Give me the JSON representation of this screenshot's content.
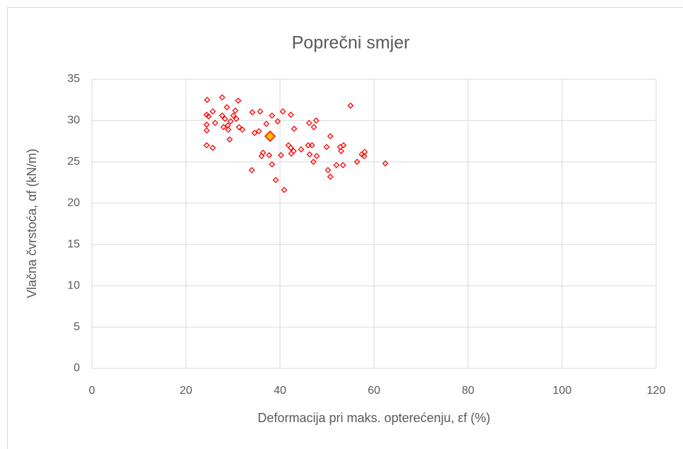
{
  "chart_data": {
    "type": "scatter",
    "title": "Poprečni smjer",
    "x_label": "Deformacija pri maks. opterećenju, εf (%)",
    "y_label": "Vlačna čvrstoća, αf (kN/m)",
    "xlim": [
      0,
      120
    ],
    "xticks": [
      0,
      20,
      40,
      60,
      80,
      100,
      120
    ],
    "ylim": [
      0,
      35
    ],
    "yticks": [
      0,
      5,
      10,
      15,
      20,
      25,
      30,
      35
    ],
    "grid": true,
    "series": [
      {
        "color": "#ff0000",
        "marker": "diamond-open",
        "x": [
          24.5,
          27.7,
          31.1,
          24.4,
          24.8,
          25.7,
          26.2,
          24.4,
          24.4,
          27.7,
          28.3,
          28.0,
          28.7,
          29.5,
          28.9,
          29.0,
          30.1,
          30.5,
          30.7,
          31.3,
          32.0,
          29.3,
          24.4,
          25.7,
          34.1,
          35.8,
          34.6,
          35.5,
          37.1,
          38.3,
          39.5,
          40.6,
          42.3,
          36.4,
          36.1,
          37.7,
          40.2,
          38.3,
          34.0,
          39.1,
          40.9,
          41.8,
          42.3,
          42.9,
          42.4,
          44.5,
          43.0,
          46.2,
          47.7,
          47.2,
          46.0,
          46.8,
          46.3,
          47.8,
          47.1,
          49.9,
          50.7,
          50.2,
          50.7,
          52.0,
          52.8,
          53.5,
          53.0,
          53.4,
          55.0,
          56.4,
          57.4,
          58.0,
          57.9,
          62.4
        ],
        "values": [
          32.5,
          32.8,
          32.4,
          30.7,
          30.5,
          31.1,
          29.7,
          29.5,
          28.8,
          30.6,
          30.2,
          29.2,
          31.6,
          29.9,
          29.4,
          28.9,
          30.6,
          31.2,
          30.2,
          29.2,
          28.9,
          27.7,
          27.0,
          26.7,
          31.0,
          31.1,
          28.5,
          28.7,
          29.6,
          30.6,
          29.9,
          31.1,
          30.7,
          26.1,
          25.7,
          25.8,
          25.8,
          24.7,
          24.0,
          22.8,
          21.6,
          27.0,
          26.7,
          26.3,
          26.0,
          26.5,
          29.0,
          29.7,
          30.0,
          29.2,
          27.0,
          27.0,
          25.9,
          25.7,
          25.0,
          26.8,
          28.1,
          24.0,
          23.2,
          24.6,
          26.8,
          27.0,
          26.3,
          24.6,
          31.8,
          25.0,
          25.9,
          26.2,
          25.7,
          24.8
        ]
      },
      {
        "color": "#ff0000",
        "fill": "#ffc000",
        "marker": "diamond-filled",
        "x": [
          37.9
        ],
        "values": [
          28.1
        ]
      }
    ]
  }
}
